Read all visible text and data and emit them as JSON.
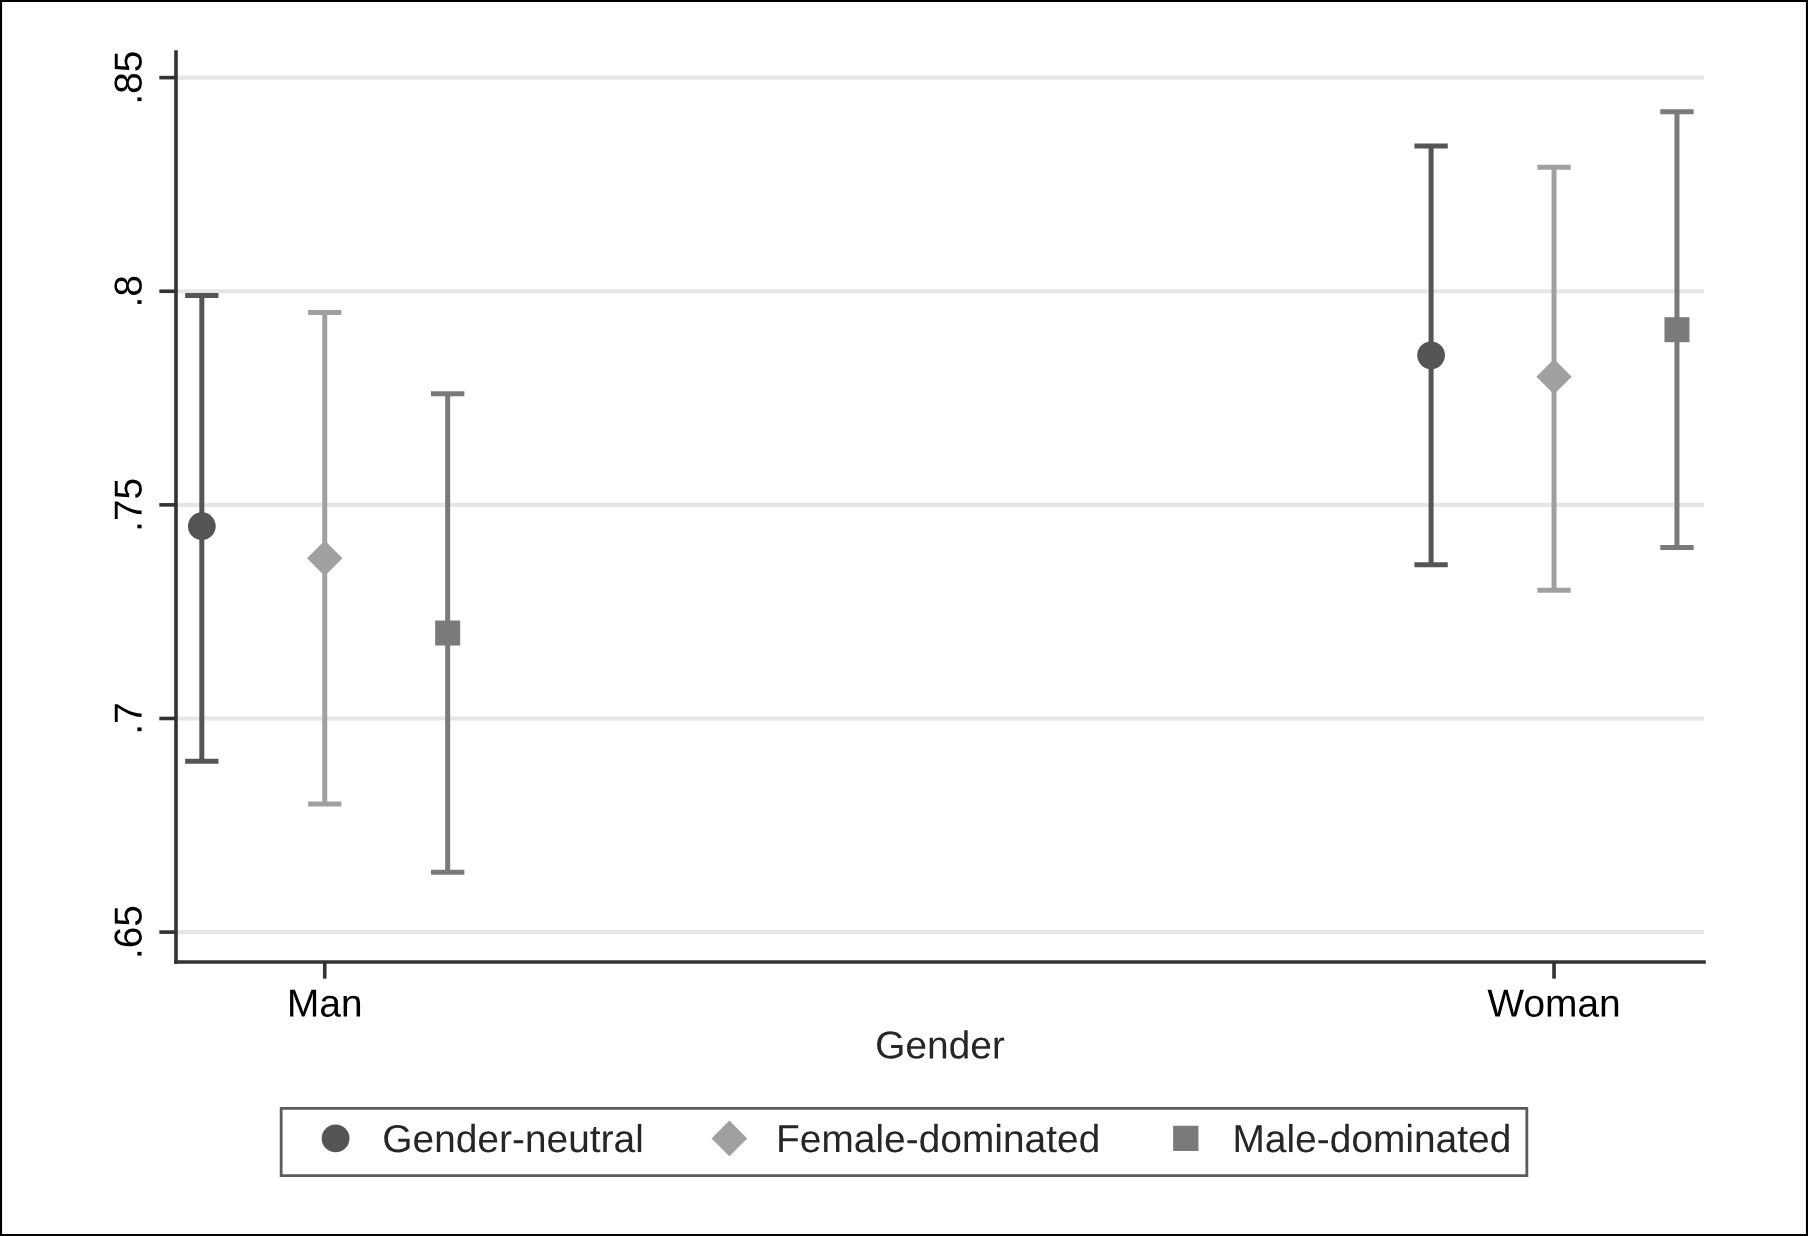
{
  "chart_data": {
    "type": "scatter",
    "xlabel": "Gender",
    "categories": [
      "Man",
      "Woman"
    ],
    "ylim": [
      0.643,
      0.856
    ],
    "yticks": [
      {
        "value": 0.65,
        "label": ".65"
      },
      {
        "value": 0.7,
        "label": ".7"
      },
      {
        "value": 0.75,
        "label": ".75"
      },
      {
        "value": 0.8,
        "label": ".8"
      },
      {
        "value": 0.85,
        "label": ".85"
      }
    ],
    "grid": "y",
    "legend": "bottom",
    "series": [
      {
        "name": "Gender-neutral",
        "color": "#555555",
        "marker": "circle",
        "values": [
          0.745,
          0.785
        ],
        "errors": [
          [
            0.69,
            0.799
          ],
          [
            0.736,
            0.834
          ]
        ]
      },
      {
        "name": "Female-dominated",
        "color": "#a0a0a0",
        "marker": "diamond",
        "values": [
          0.7375,
          0.78
        ],
        "errors": [
          [
            0.68,
            0.795
          ],
          [
            0.73,
            0.829
          ]
        ]
      },
      {
        "name": "Male-dominated",
        "color": "#7a7a7a",
        "marker": "square",
        "values": [
          0.72,
          0.791
        ],
        "errors": [
          [
            0.664,
            0.776
          ],
          [
            0.74,
            0.842
          ]
        ]
      }
    ]
  }
}
